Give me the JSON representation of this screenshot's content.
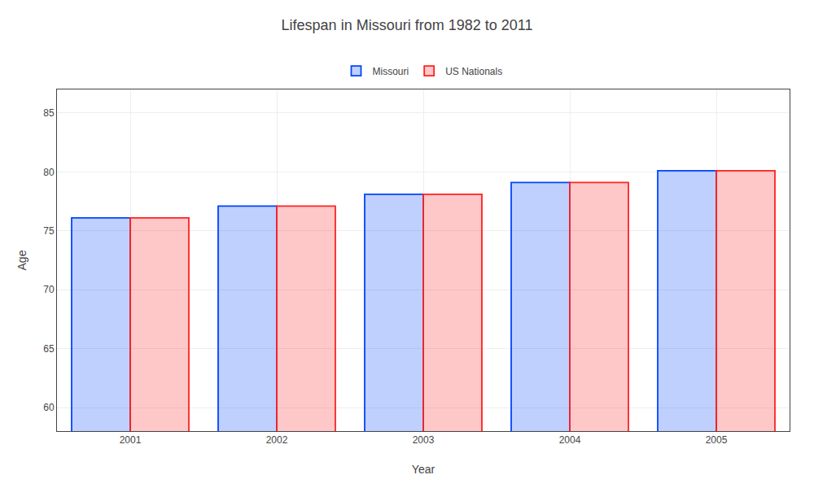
{
  "chart_data": {
    "type": "bar",
    "title": "Lifespan in Missouri from 1982 to 2011",
    "x_label": "Year",
    "y_label": "Age",
    "categories": [
      "2001",
      "2002",
      "2003",
      "2004",
      "2005"
    ],
    "series": [
      {
        "name": "Missouri",
        "color": "#0044ff",
        "values": [
          76.1,
          77.1,
          78.1,
          79.1,
          80.1
        ]
      },
      {
        "name": "US Nationals",
        "color": "#ff2222",
        "values": [
          76.1,
          77.1,
          78.1,
          79.1,
          80.1
        ]
      }
    ],
    "ylim": [
      58,
      87
    ],
    "yticks": [
      60,
      65,
      70,
      75,
      80,
      85
    ],
    "grid": true,
    "legend": "top"
  }
}
